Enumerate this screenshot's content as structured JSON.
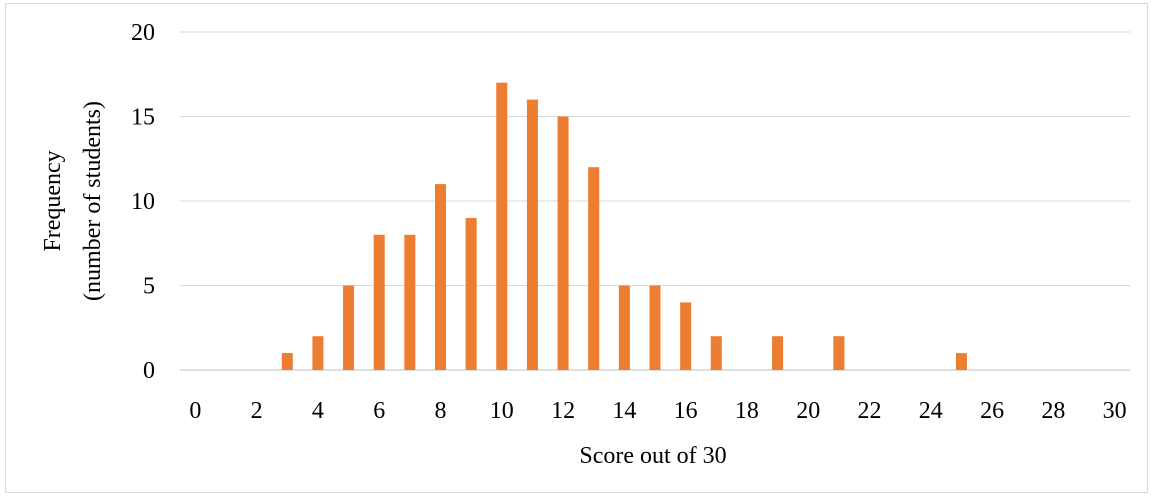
{
  "chart_data": {
    "type": "bar",
    "title": "",
    "xlabel": "Score out of 30",
    "ylabel": "Frequency",
    "ylabel_sub": "(number of students)",
    "xlim": [
      0,
      30
    ],
    "ylim": [
      0,
      20
    ],
    "x_ticks": [
      0,
      2,
      4,
      6,
      8,
      10,
      12,
      14,
      16,
      18,
      20,
      22,
      24,
      26,
      28,
      30
    ],
    "y_ticks": [
      0,
      5,
      10,
      15,
      20
    ],
    "grid": true,
    "legend": "none",
    "bar_color": "#ED7D31",
    "grid_color": "#d9d9d9",
    "x": [
      3,
      4,
      5,
      6,
      7,
      8,
      9,
      10,
      11,
      12,
      13,
      14,
      15,
      16,
      17,
      19,
      21,
      25
    ],
    "values": [
      1,
      2,
      5,
      8,
      8,
      11,
      9,
      17,
      16,
      15,
      12,
      5,
      5,
      4,
      2,
      2,
      2,
      1
    ]
  }
}
